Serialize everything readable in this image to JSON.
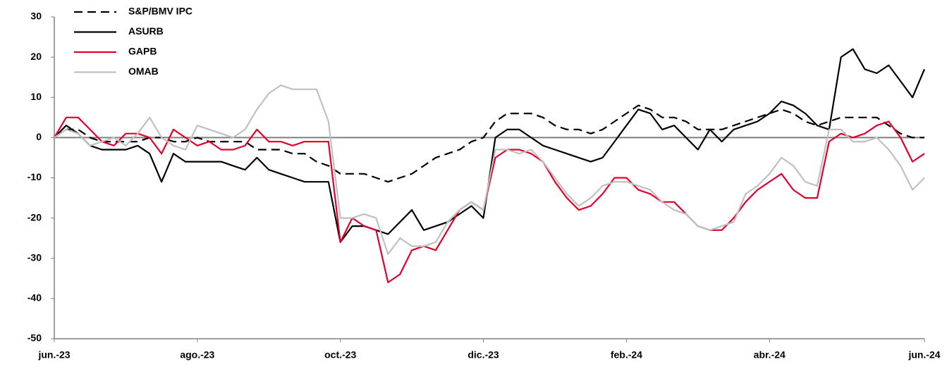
{
  "chart_data": {
    "type": "line",
    "categories": [
      "jun.-23",
      null,
      null,
      null,
      null,
      null,
      null,
      null,
      null,
      null,
      null,
      null,
      "ago.-23",
      null,
      null,
      null,
      null,
      null,
      null,
      null,
      null,
      null,
      null,
      null,
      "oct.-23",
      null,
      null,
      null,
      null,
      null,
      null,
      null,
      null,
      null,
      null,
      null,
      "dic.-23",
      null,
      null,
      null,
      null,
      null,
      null,
      null,
      null,
      null,
      null,
      null,
      "feb.-24",
      null,
      null,
      null,
      null,
      null,
      null,
      null,
      null,
      null,
      null,
      null,
      "abr.-24",
      null,
      null,
      null,
      null,
      null,
      null,
      null,
      null,
      null,
      null,
      null,
      null,
      "jun.-24"
    ],
    "series": [
      {
        "name": "S&P/BMV IPC",
        "color": "#000000",
        "dashed": true,
        "values": [
          0,
          2,
          2,
          0,
          -1,
          -1,
          -1,
          -1,
          0,
          0,
          -1,
          -1,
          0,
          -1,
          -1,
          -1,
          -1,
          -3,
          -3,
          -3,
          -4,
          -4,
          -6,
          -7,
          -9,
          -9,
          -9,
          -10,
          -11,
          -10,
          -9,
          -7,
          -5,
          -4,
          -3,
          -1,
          0,
          4,
          6,
          6,
          6,
          5,
          3,
          2,
          2,
          1,
          2,
          4,
          6,
          8,
          7,
          5,
          5,
          4,
          2,
          2,
          2,
          3,
          4,
          5,
          6,
          7,
          6,
          4,
          3,
          4,
          5,
          5,
          5,
          5,
          3,
          1,
          0,
          0
        ]
      },
      {
        "name": "ASURB",
        "color": "#000000",
        "dashed": false,
        "values": [
          0,
          3,
          1,
          -2,
          -3,
          -3,
          -3,
          -2,
          -4,
          -11,
          -4,
          -6,
          -6,
          -6,
          -6,
          -7,
          -8,
          -5,
          -8,
          -9,
          -10,
          -11,
          -11,
          -11,
          -26,
          -22,
          -22,
          -23,
          -24,
          -21,
          -18,
          -23,
          -22,
          -21,
          -19,
          -17,
          -20,
          0,
          2,
          2,
          0,
          -2,
          -3,
          -4,
          -5,
          -6,
          -5,
          -1,
          3,
          7,
          6,
          2,
          3,
          0,
          -3,
          2,
          -1,
          2,
          3,
          4,
          6,
          9,
          8,
          6,
          3,
          2,
          20,
          22,
          17,
          16,
          18,
          14,
          10,
          17
        ]
      },
      {
        "name": "GAPB",
        "color": "#e0002a",
        "dashed": false,
        "values": [
          0,
          5,
          5,
          2,
          -1,
          -2,
          1,
          1,
          0,
          -4,
          2,
          0,
          -2,
          -1,
          -3,
          -3,
          -2,
          2,
          -1,
          -1,
          -2,
          -1,
          -1,
          -1,
          -26,
          -20,
          -22,
          -23,
          -36,
          -34,
          -28,
          -27,
          -28,
          -23,
          -18,
          -16,
          -18,
          -5,
          -3,
          -3,
          -4,
          -6,
          -11,
          -15,
          -18,
          -17,
          -14,
          -10,
          -10,
          -13,
          -14,
          -16,
          -16,
          -19,
          -22,
          -23,
          -23,
          -20,
          -16,
          -13,
          -11,
          -9,
          -13,
          -15,
          -15,
          -1,
          1,
          0,
          1,
          3,
          4,
          0,
          -6,
          -4
        ]
      },
      {
        "name": "OMAB",
        "color": "#c0c0c0",
        "dashed": false,
        "values": [
          0,
          2,
          1,
          -2,
          -1,
          0,
          -2,
          1,
          5,
          0,
          -2,
          -3,
          3,
          2,
          1,
          0,
          2,
          7,
          11,
          13,
          12,
          12,
          12,
          4,
          -20,
          -20,
          -19,
          -20,
          -29,
          -25,
          -27,
          -27,
          -26,
          -21,
          -18,
          -16,
          -18,
          -3,
          -3,
          -4,
          -3,
          -6,
          -10,
          -14,
          -17,
          -15,
          -12,
          -11,
          -11,
          -12,
          -13,
          -16,
          -18,
          -19,
          -22,
          -23,
          -22,
          -21,
          -14,
          -12,
          -9,
          -5,
          -7,
          -11,
          -12,
          2,
          2,
          -1,
          -1,
          0,
          -3,
          -7,
          -13,
          -10
        ]
      }
    ],
    "ylim": [
      -50,
      30
    ],
    "yticks": [
      -50,
      -40,
      -30,
      -20,
      -10,
      0,
      10,
      20,
      30
    ],
    "zero_line": true,
    "legend": "top-left"
  }
}
